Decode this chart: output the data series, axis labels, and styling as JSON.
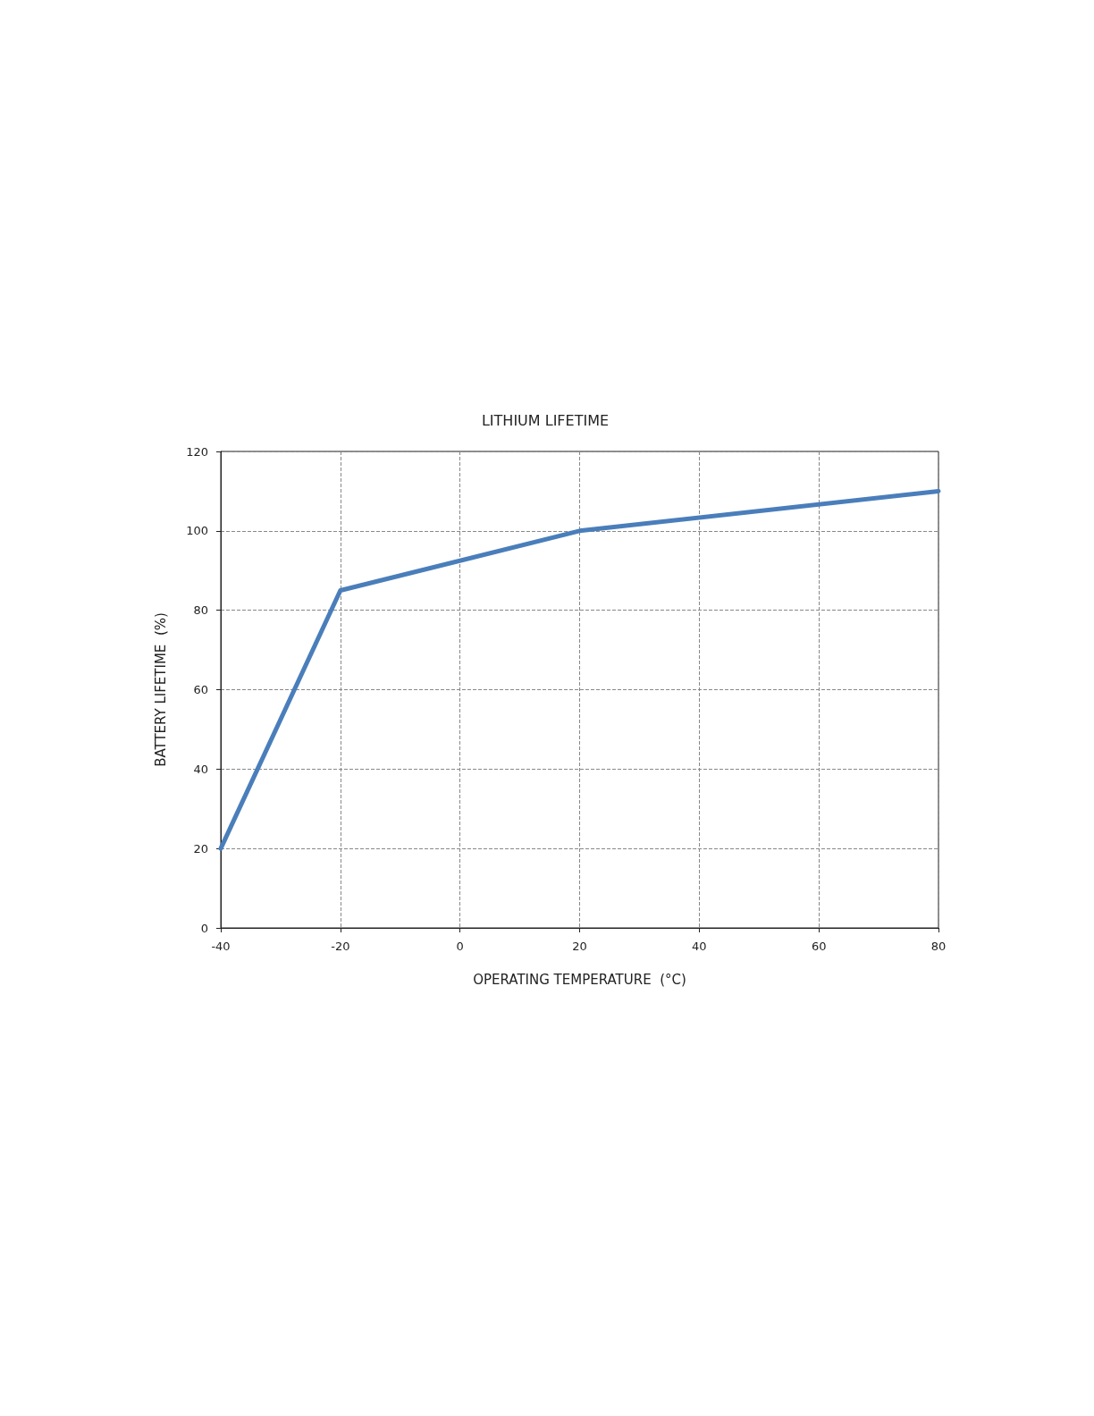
{
  "chart_data": {
    "type": "line",
    "title": "LITHIUM LIFETIME",
    "xlabel": "OPERATING TEMPERATURE  (°C)",
    "ylabel": "BATTERY LIFETIME  (%)",
    "x": [
      -40,
      -20,
      20,
      80
    ],
    "series": [
      {
        "color": "#4a7ebb",
        "values": [
          20,
          85,
          100,
          110
        ]
      }
    ],
    "xlim": [
      -40,
      80
    ],
    "xticks": [
      -40,
      -20,
      0,
      20,
      40,
      60,
      80
    ],
    "ylim": [
      0,
      120
    ],
    "yticks": [
      0,
      20,
      40,
      60,
      80,
      100,
      120
    ],
    "grid": true,
    "marker": "none",
    "line_style": "solid"
  }
}
